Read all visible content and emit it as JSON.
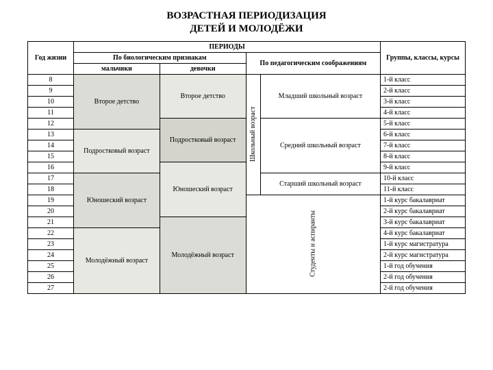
{
  "title_line1": "ВОЗРАСТНАЯ ПЕРИОДИЗАЦИЯ",
  "title_line2": "ДЕТЕЙ И МОЛОДЁЖИ",
  "headers": {
    "year": "Год жизни",
    "periods": "ПЕРИОДЫ",
    "biological": "По биологическим признакам",
    "pedagogical": "По педагогическим соображениям",
    "groups": "Группы, классы, курсы",
    "boys": "мальчики",
    "girls": "девочки"
  },
  "years": [
    "8",
    "9",
    "10",
    "11",
    "12",
    "13",
    "14",
    "15",
    "16",
    "17",
    "18",
    "19",
    "20",
    "21",
    "22",
    "23",
    "24",
    "25",
    "26",
    "27"
  ],
  "bio_boys": {
    "b1": "Второе детство",
    "b2": "Подростковый возраст",
    "b3": "Юношеский возраст",
    "b4": "Молодёжный возраст"
  },
  "bio_girls": {
    "g1": "Второе детство",
    "g2": "Подростковый возраст",
    "g3": "Юношеский возраст",
    "g4": "Молодёжный возраст"
  },
  "ped_vertical": {
    "school": "Школьный возраст",
    "students": "Студенты и аспиранты"
  },
  "ped_stage": {
    "junior": "Младший школьный возраст",
    "middle": "Средний школьный возраст",
    "senior": "Старший школьный возраст"
  },
  "grades": [
    "1-й класс",
    "2-й класс",
    "3-й класс",
    "4-й класс",
    "5-й класс",
    "6-й класс",
    "7-й класс",
    "8-й класс",
    "9-й класс",
    "10-й класс",
    "11-й класс",
    "1-й курс бакалавриат",
    "2-й курс бакалавриат",
    "3-й курс бакалавриат",
    "4-й курс бакалавриат",
    "1-й курс магистратура",
    "2-й курс магистратура",
    "1-й год обучения",
    "2-й год обучения",
    "2-й год обучения"
  ],
  "colors": {
    "bg": "#ffffff",
    "border": "#000000",
    "shade1": "#e8e8e3",
    "shade2": "#dcdcd6",
    "shade3": "#d4d4cd"
  },
  "fontsize": {
    "title": 15,
    "table": 10
  }
}
